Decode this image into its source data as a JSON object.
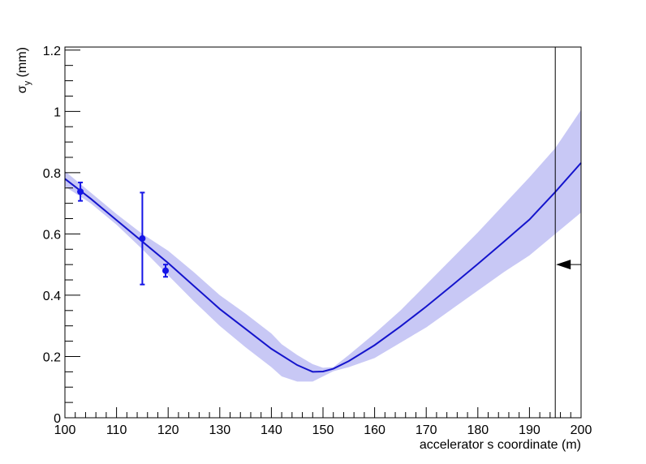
{
  "chart_data": {
    "type": "line",
    "title": "",
    "xlabel": "accelerator s coordinate (m)",
    "ylabel": "σ_y (mm)",
    "ylabel_main": "σ",
    "ylabel_sub": "y",
    "ylabel_rest": " (mm)",
    "xlim": [
      100,
      200
    ],
    "ylim": [
      0,
      1.21
    ],
    "x_ticks": [
      100,
      110,
      120,
      130,
      140,
      150,
      160,
      170,
      180,
      190,
      200
    ],
    "x_tick_labels": [
      "100",
      "110",
      "120",
      "130",
      "140",
      "150",
      "160",
      "170",
      "180",
      "190",
      "200"
    ],
    "y_ticks": [
      0,
      0.2,
      0.4,
      0.6,
      0.8,
      1,
      1.2
    ],
    "y_tick_labels": [
      "0",
      "0.2",
      "0.4",
      "0.6",
      "0.8",
      "1",
      "1.2"
    ],
    "grid": false,
    "colors": {
      "fit_line": "#1414cc",
      "band": "#c8c8f5",
      "points": "#1414e6",
      "marker": "#000000"
    },
    "fit_curve": {
      "x": [
        100,
        105,
        110,
        115,
        120,
        125,
        130,
        135,
        140,
        145,
        148,
        150,
        152,
        155,
        160,
        165,
        170,
        175,
        180,
        185,
        190,
        195,
        200
      ],
      "y": [
        0.78,
        0.715,
        0.645,
        0.575,
        0.505,
        0.43,
        0.355,
        0.29,
        0.225,
        0.172,
        0.15,
        0.151,
        0.16,
        0.185,
        0.237,
        0.298,
        0.363,
        0.432,
        0.502,
        0.574,
        0.647,
        0.737,
        0.832
      ]
    },
    "error_band": {
      "x": [
        100,
        105,
        110,
        115,
        120,
        125,
        130,
        135,
        140,
        142,
        145,
        148,
        150,
        152,
        155,
        160,
        165,
        170,
        175,
        180,
        185,
        190,
        195,
        200
      ],
      "lower": [
        0.755,
        0.7,
        0.63,
        0.55,
        0.465,
        0.38,
        0.3,
        0.23,
        0.165,
        0.135,
        0.118,
        0.118,
        0.135,
        0.152,
        0.165,
        0.195,
        0.245,
        0.295,
        0.355,
        0.415,
        0.475,
        0.53,
        0.6,
        0.67
      ],
      "upper": [
        0.805,
        0.735,
        0.665,
        0.6,
        0.545,
        0.475,
        0.4,
        0.34,
        0.275,
        0.24,
        0.205,
        0.175,
        0.163,
        0.165,
        0.205,
        0.275,
        0.35,
        0.435,
        0.52,
        0.605,
        0.695,
        0.785,
        0.88,
        1.005
      ]
    },
    "measurements": [
      {
        "x": 103,
        "y": 0.738,
        "err": 0.03
      },
      {
        "x": 115,
        "y": 0.585,
        "err": 0.15
      },
      {
        "x": 119.5,
        "y": 0.48,
        "err": 0.02
      }
    ],
    "vertical_line_x": 195,
    "arrow_y": 0.5
  }
}
